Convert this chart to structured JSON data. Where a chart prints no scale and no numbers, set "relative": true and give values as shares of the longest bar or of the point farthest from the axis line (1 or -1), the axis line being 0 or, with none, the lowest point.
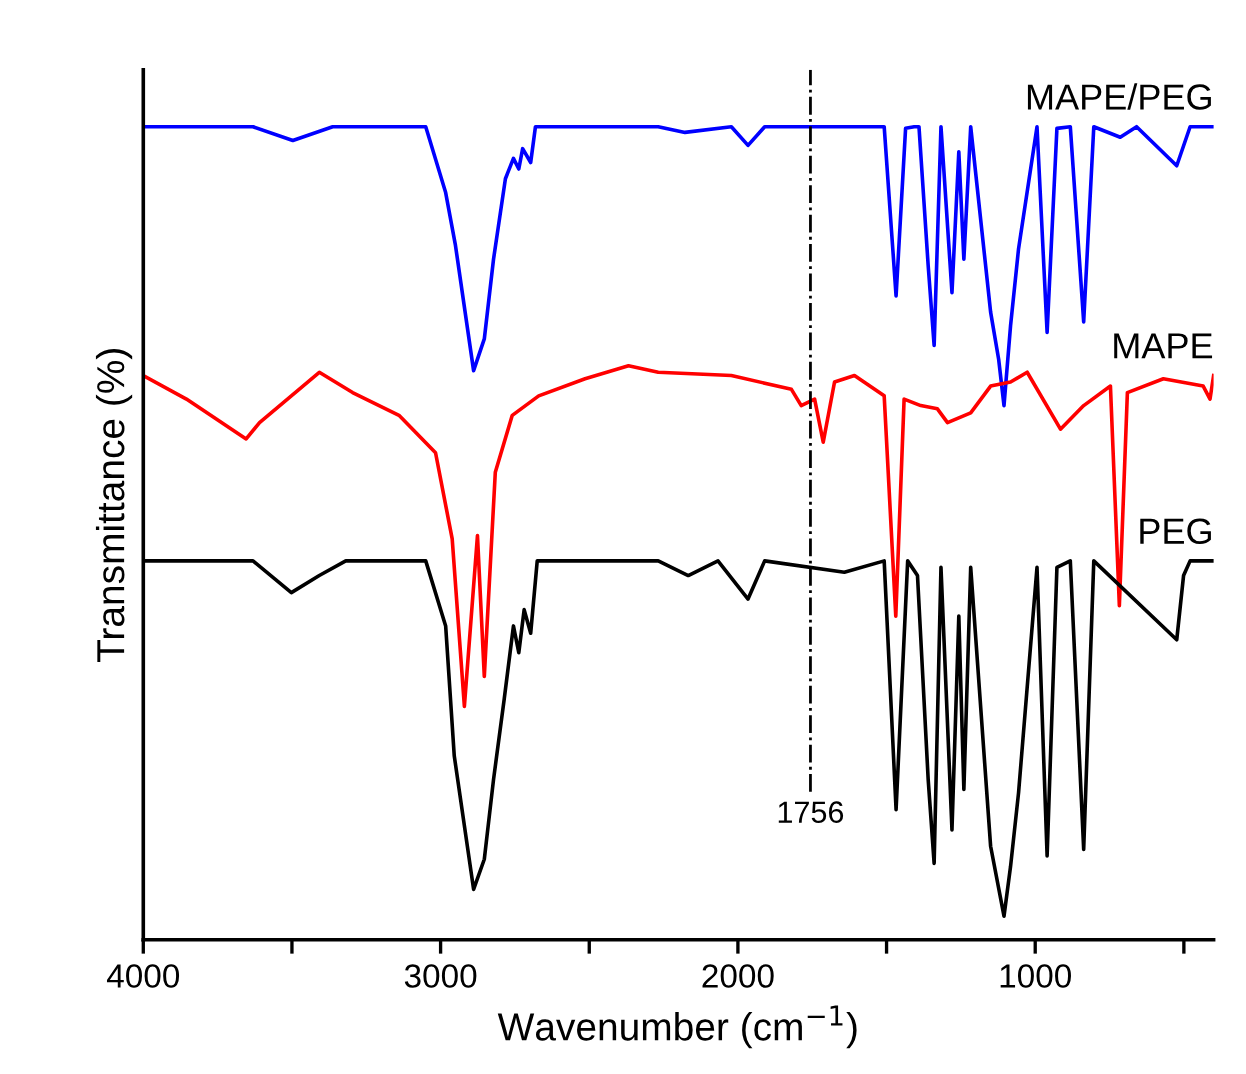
{
  "chart_data": {
    "type": "line",
    "relative": true,
    "xlabel": "Wavenumber (cm$^{−1}$)",
    "ylabel": "Transmittance (%)",
    "xlim": [
      4000,
      400
    ],
    "xticks": [
      4000,
      {
        "value": 3500,
        "label": null
      },
      3000,
      {
        "value": 2500,
        "label": null
      },
      2000,
      {
        "value": 1500,
        "label": null
      },
      1000,
      {
        "value": 500,
        "label": null
      }
    ],
    "grid": false,
    "legend": false,
    "marker": "none",
    "line_style": "solid",
    "ref_lines": [
      {
        "axis": "x",
        "value": 1756,
        "label": "1756",
        "color": "#000000",
        "line_style": "dashdot"
      }
    ],
    "series": [
      {
        "name": "MAPE/PEG",
        "color": "#0000ff",
        "x": [
          4000,
          3631,
          3497,
          3363,
          3050,
          2983,
          2950,
          2889,
          2853,
          2822,
          2782,
          2755,
          2737,
          2724,
          2697,
          2681,
          2268,
          2178,
          2022,
          1966,
          1910,
          1508,
          1468,
          1436,
          1407,
          1391,
          1360,
          1340,
          1317,
          1280,
          1257,
          1240,
          1217,
          1150,
          1123,
          1105,
          1083,
          1056,
          994,
          960,
          927,
          882,
          837,
          803,
          714,
          659,
          524,
          479,
          400
        ],
        "values": [
          1.0,
          1.0,
          0.983,
          1.0,
          1.0,
          0.919,
          0.854,
          0.7,
          0.739,
          0.837,
          0.936,
          0.961,
          0.948,
          0.973,
          0.956,
          1.0,
          1.0,
          0.993,
          1.0,
          0.977,
          1.0,
          1.0,
          0.792,
          0.998,
          1.0,
          1.0,
          0.829,
          0.731,
          1.0,
          0.796,
          0.969,
          0.837,
          1.0,
          0.772,
          0.714,
          0.657,
          0.755,
          0.85,
          1.0,
          0.747,
          0.998,
          1.0,
          0.76,
          1.0,
          0.987,
          1.0,
          0.952,
          1.0,
          1.0
        ]
      },
      {
        "name": "MAPE",
        "color": "#ff0000",
        "x": [
          4000,
          3855,
          3654,
          3609,
          3408,
          3296,
          3140,
          3017,
          2961,
          2920,
          2876,
          2853,
          2816,
          2759,
          2670,
          2514,
          2368,
          2268,
          2022,
          1820,
          1787,
          1742,
          1713,
          1675,
          1608,
          1508,
          1469,
          1441,
          1385,
          1329,
          1295,
          1217,
          1150,
          1083,
          1027,
          915,
          837,
          747,
          717,
          690,
          569,
          435,
          412,
          400
        ],
        "values": [
          0.694,
          0.665,
          0.616,
          0.636,
          0.698,
          0.673,
          0.645,
          0.599,
          0.493,
          0.287,
          0.497,
          0.324,
          0.575,
          0.645,
          0.669,
          0.69,
          0.706,
          0.698,
          0.694,
          0.677,
          0.657,
          0.665,
          0.612,
          0.686,
          0.694,
          0.669,
          0.398,
          0.665,
          0.657,
          0.653,
          0.636,
          0.648,
          0.681,
          0.686,
          0.698,
          0.628,
          0.657,
          0.681,
          0.411,
          0.673,
          0.69,
          0.681,
          0.665,
          0.694
        ]
      },
      {
        "name": "PEG",
        "color": "#000000",
        "x": [
          4000,
          3631,
          3502,
          3408,
          3319,
          3050,
          2983,
          2954,
          2889,
          2853,
          2822,
          2786,
          2755,
          2737,
          2719,
          2697,
          2675,
          2268,
          2167,
          2067,
          1966,
          1910,
          1642,
          1508,
          1468,
          1429,
          1396,
          1360,
          1340,
          1317,
          1280,
          1257,
          1240,
          1217,
          1150,
          1105,
          1083,
          1056,
          994,
          960,
          927,
          882,
          837,
          803,
          524,
          501,
          479,
          400
        ],
        "values": [
          0.466,
          0.466,
          0.427,
          0.448,
          0.466,
          0.466,
          0.386,
          0.226,
          0.062,
          0.099,
          0.197,
          0.296,
          0.386,
          0.353,
          0.406,
          0.377,
          0.466,
          0.466,
          0.448,
          0.466,
          0.419,
          0.466,
          0.452,
          0.466,
          0.16,
          0.466,
          0.448,
          0.197,
          0.094,
          0.458,
          0.135,
          0.398,
          0.185,
          0.458,
          0.115,
          0.029,
          0.09,
          0.181,
          0.458,
          0.103,
          0.458,
          0.466,
          0.111,
          0.466,
          0.369,
          0.448,
          0.466,
          0.466
        ]
      }
    ]
  }
}
